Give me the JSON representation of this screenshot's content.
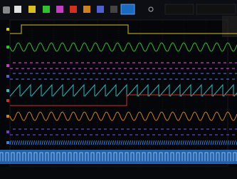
{
  "traces": [
    {
      "color": "#d8c020",
      "shape": "step-down"
    },
    {
      "color": "#30c030",
      "shape": "sine"
    },
    {
      "color": "#c040c0",
      "shape": "pulse"
    },
    {
      "color": "#5060d0",
      "shape": "pulse"
    },
    {
      "color": "#30b8c0",
      "shape": "saw"
    },
    {
      "color": "#d03020",
      "shape": "step-up"
    },
    {
      "color": "#d08020",
      "shape": "sine"
    },
    {
      "color": "#7040c0",
      "shape": "pulse"
    },
    {
      "color": "#3080e0",
      "shape": "dense"
    }
  ]
}
